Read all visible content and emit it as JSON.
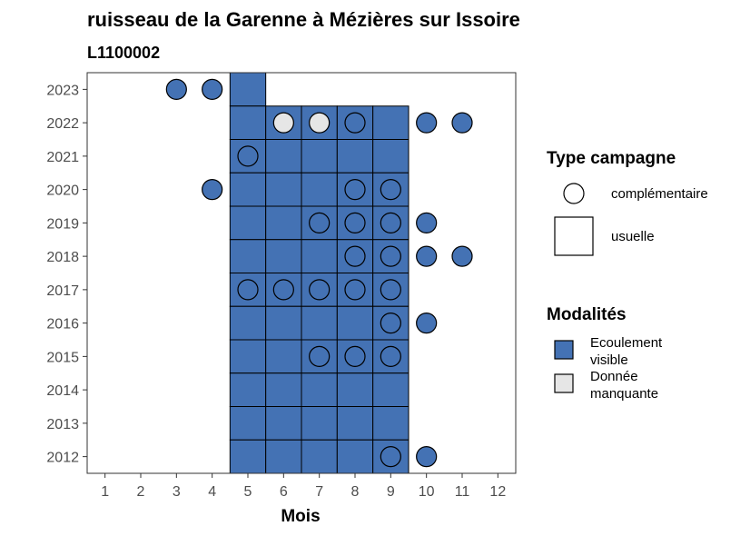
{
  "chart_data": {
    "type": "heatmap",
    "title": "ruisseau de la Garenne à Mézières sur Issoire",
    "subtitle": "L1100002",
    "xlabel": "Mois",
    "ylabel": "",
    "x_ticks": [
      1,
      2,
      3,
      4,
      5,
      6,
      7,
      8,
      9,
      10,
      11,
      12
    ],
    "y_ticks": [
      2012,
      2013,
      2014,
      2015,
      2016,
      2017,
      2018,
      2019,
      2020,
      2021,
      2022,
      2023
    ],
    "xlim": [
      0.5,
      12.5
    ],
    "ylim": [
      2011.5,
      2023.5
    ],
    "grid": false,
    "legend_position": "right",
    "colors": {
      "Ecoulement visible": "#4472b4",
      "Donnée manquante": "#e6e6e6"
    },
    "legend_shape": {
      "title": "Type campagne",
      "items": [
        {
          "label": "complémentaire",
          "shape": "circle"
        },
        {
          "label": "usuelle",
          "shape": "square"
        }
      ]
    },
    "legend_fill": {
      "title": "Modalités",
      "items": [
        {
          "label_lines": [
            "Ecoulement",
            "visible"
          ],
          "key": "Ecoulement visible"
        },
        {
          "label_lines": [
            "Donnée",
            "manquante"
          ],
          "key": "Donnée manquante"
        }
      ]
    },
    "usuelle": [
      {
        "year": 2023,
        "months": [
          5
        ],
        "modalite": "Ecoulement visible"
      },
      {
        "year": 2022,
        "months": [
          5,
          6,
          7,
          8,
          9
        ],
        "modalite": "Ecoulement visible"
      },
      {
        "year": 2021,
        "months": [
          5,
          6,
          7,
          8,
          9
        ],
        "modalite": "Ecoulement visible"
      },
      {
        "year": 2020,
        "months": [
          5,
          6,
          7,
          8,
          9
        ],
        "modalite": "Ecoulement visible"
      },
      {
        "year": 2019,
        "months": [
          5,
          6,
          7,
          8,
          9
        ],
        "modalite": "Ecoulement visible"
      },
      {
        "year": 2018,
        "months": [
          5,
          6,
          7,
          8,
          9
        ],
        "modalite": "Ecoulement visible"
      },
      {
        "year": 2017,
        "months": [
          5,
          6,
          7,
          8,
          9
        ],
        "modalite": "Ecoulement visible"
      },
      {
        "year": 2016,
        "months": [
          5,
          6,
          7,
          8,
          9
        ],
        "modalite": "Ecoulement visible"
      },
      {
        "year": 2015,
        "months": [
          5,
          6,
          7,
          8,
          9
        ],
        "modalite": "Ecoulement visible"
      },
      {
        "year": 2014,
        "months": [
          5,
          6,
          7,
          8,
          9
        ],
        "modalite": "Ecoulement visible"
      },
      {
        "year": 2013,
        "months": [
          5,
          6,
          7,
          8,
          9
        ],
        "modalite": "Ecoulement visible"
      },
      {
        "year": 2012,
        "months": [
          5,
          6,
          7,
          8,
          9
        ],
        "modalite": "Ecoulement visible"
      }
    ],
    "complementaire": [
      {
        "year": 2023,
        "month": 3,
        "modalite": "Ecoulement visible"
      },
      {
        "year": 2023,
        "month": 4,
        "modalite": "Ecoulement visible"
      },
      {
        "year": 2022,
        "month": 6,
        "modalite": "Donnée manquante"
      },
      {
        "year": 2022,
        "month": 7,
        "modalite": "Donnée manquante"
      },
      {
        "year": 2022,
        "month": 8,
        "modalite": "Ecoulement visible"
      },
      {
        "year": 2022,
        "month": 10,
        "modalite": "Ecoulement visible"
      },
      {
        "year": 2022,
        "month": 11,
        "modalite": "Ecoulement visible"
      },
      {
        "year": 2021,
        "month": 5,
        "modalite": "Ecoulement visible"
      },
      {
        "year": 2020,
        "month": 4,
        "modalite": "Ecoulement visible"
      },
      {
        "year": 2020,
        "month": 8,
        "modalite": "Ecoulement visible"
      },
      {
        "year": 2020,
        "month": 9,
        "modalite": "Ecoulement visible"
      },
      {
        "year": 2019,
        "month": 7,
        "modalite": "Ecoulement visible"
      },
      {
        "year": 2019,
        "month": 8,
        "modalite": "Ecoulement visible"
      },
      {
        "year": 2019,
        "month": 9,
        "modalite": "Ecoulement visible"
      },
      {
        "year": 2019,
        "month": 10,
        "modalite": "Ecoulement visible"
      },
      {
        "year": 2018,
        "month": 8,
        "modalite": "Ecoulement visible"
      },
      {
        "year": 2018,
        "month": 9,
        "modalite": "Ecoulement visible"
      },
      {
        "year": 2018,
        "month": 10,
        "modalite": "Ecoulement visible"
      },
      {
        "year": 2018,
        "month": 11,
        "modalite": "Ecoulement visible"
      },
      {
        "year": 2017,
        "month": 5,
        "modalite": "Ecoulement visible"
      },
      {
        "year": 2017,
        "month": 6,
        "modalite": "Ecoulement visible"
      },
      {
        "year": 2017,
        "month": 7,
        "modalite": "Ecoulement visible"
      },
      {
        "year": 2017,
        "month": 8,
        "modalite": "Ecoulement visible"
      },
      {
        "year": 2017,
        "month": 9,
        "modalite": "Ecoulement visible"
      },
      {
        "year": 2016,
        "month": 9,
        "modalite": "Ecoulement visible"
      },
      {
        "year": 2016,
        "month": 10,
        "modalite": "Ecoulement visible"
      },
      {
        "year": 2015,
        "month": 7,
        "modalite": "Ecoulement visible"
      },
      {
        "year": 2015,
        "month": 8,
        "modalite": "Ecoulement visible"
      },
      {
        "year": 2015,
        "month": 9,
        "modalite": "Ecoulement visible"
      },
      {
        "year": 2012,
        "month": 9,
        "modalite": "Ecoulement visible"
      },
      {
        "year": 2012,
        "month": 10,
        "modalite": "Ecoulement visible"
      }
    ]
  }
}
